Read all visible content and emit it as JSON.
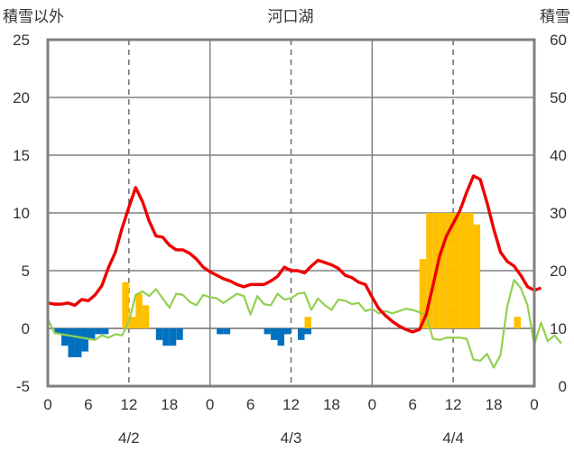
{
  "chart_data": {
    "type": "bar",
    "title": "河口湖",
    "y_left_label": "積雪以外",
    "y_right_label": "積雪",
    "y_left_range": [
      -5,
      25
    ],
    "y_left_ticks": [
      "-5",
      "0",
      "5",
      "10",
      "15",
      "20",
      "25"
    ],
    "y_right_range": [
      0,
      60
    ],
    "y_right_ticks": [
      "0",
      "10",
      "20",
      "30",
      "40",
      "50",
      "60"
    ],
    "x_range": [
      0,
      72
    ],
    "x_tick_labels": [
      "0",
      "6",
      "12",
      "18",
      "0",
      "6",
      "12",
      "18",
      "0",
      "6",
      "12",
      "18",
      "0"
    ],
    "date_labels": [
      {
        "text": "4/2",
        "x": 12
      },
      {
        "text": "4/3",
        "x": 36
      },
      {
        "text": "4/4",
        "x": 60
      }
    ],
    "day_boundaries": [
      24,
      48
    ],
    "noon_lines": [
      12,
      36,
      60
    ],
    "grid": true,
    "colors": {
      "temperature": "#ee0000",
      "precip_line": "#92d050",
      "snowfall": "#ffc000",
      "snow_change": "#0070c0",
      "snow_depth": "#7030a0"
    },
    "series": [
      {
        "values": [
          2.2,
          2.1,
          2.1,
          2.2,
          2.0,
          2.5,
          2.4,
          2.9,
          3.7,
          5.3,
          6.6,
          8.7,
          10.5,
          12.2,
          11.0,
          9.3,
          8.0,
          7.9,
          7.2,
          6.8,
          6.8,
          6.5,
          6.0,
          5.3,
          4.9,
          4.6,
          4.3,
          4.1,
          3.8,
          3.6,
          3.8,
          3.8,
          3.8,
          4.1,
          4.5,
          5.3,
          5.0,
          5.0,
          4.8,
          5.4,
          5.9,
          5.7,
          5.5,
          5.2,
          4.6,
          4.4,
          4.0,
          3.8,
          2.7,
          1.7,
          1.1,
          0.6,
          0.2,
          -0.1,
          -0.3,
          -0.1,
          1.2,
          3.7,
          6.3,
          8.0,
          9.1,
          10.2,
          11.8,
          13.2,
          12.9,
          10.9,
          8.6,
          6.6,
          5.8,
          5.4,
          4.6,
          3.6,
          3.3,
          3.5
        ]
      },
      {
        "values": [
          0.8,
          -0.4,
          -0.5,
          -0.6,
          -0.7,
          -0.8,
          -0.9,
          -1.0,
          -0.6,
          -0.8,
          -0.5,
          -0.6,
          0.6,
          2.9,
          3.2,
          2.8,
          3.4,
          2.6,
          1.8,
          3.0,
          2.9,
          2.3,
          2.0,
          2.9,
          2.7,
          2.6,
          2.2,
          2.6,
          3.0,
          2.8,
          1.2,
          2.8,
          2.1,
          2.0,
          3.0,
          2.5,
          2.6,
          3.0,
          3.1,
          1.6,
          2.6,
          2.0,
          1.6,
          2.5,
          2.4,
          2.1,
          2.2,
          1.5,
          1.7,
          1.3,
          1.5,
          1.3,
          1.5,
          1.7,
          1.6,
          1.4,
          1.1,
          -0.9,
          -1.0,
          -0.8,
          -0.8,
          -0.8,
          -0.9,
          -2.7,
          -2.8,
          -2.2,
          -3.4,
          -2.3,
          1.9,
          4.2,
          3.5,
          2.0,
          -1.4,
          0.5,
          -1.1,
          -0.6,
          -1.3
        ]
      },
      {
        "bars_pos": [
          [
            11.5,
            4.0
          ],
          [
            12.5,
            1.0
          ],
          [
            13.5,
            3.0
          ],
          [
            14.5,
            2.0
          ],
          [
            38.5,
            1.0
          ],
          [
            55.5,
            6.0
          ],
          [
            56.5,
            10.0
          ],
          [
            57.5,
            10.0
          ],
          [
            58.5,
            10.0
          ],
          [
            59.5,
            10.0
          ],
          [
            60.5,
            10.0
          ],
          [
            61.5,
            10.0
          ],
          [
            62.5,
            10.0
          ],
          [
            63.5,
            9.0
          ],
          [
            69.5,
            1.0
          ]
        ]
      },
      {
        "bars_neg": [
          [
            1.5,
            -0.5
          ],
          [
            2.5,
            -1.5
          ],
          [
            3.5,
            -2.5
          ],
          [
            4.5,
            -2.5
          ],
          [
            5.5,
            -2.0
          ],
          [
            6.5,
            -1.0
          ],
          [
            7.5,
            -0.5
          ],
          [
            8.5,
            -0.5
          ],
          [
            16.5,
            -1.0
          ],
          [
            17.5,
            -1.5
          ],
          [
            18.5,
            -1.5
          ],
          [
            19.5,
            -1.0
          ],
          [
            25.5,
            -0.5
          ],
          [
            26.5,
            -0.5
          ],
          [
            32.5,
            -0.5
          ],
          [
            33.5,
            -1.0
          ],
          [
            34.5,
            -1.5
          ],
          [
            35.5,
            -0.5
          ],
          [
            37.5,
            -1.0
          ],
          [
            38.5,
            -0.5
          ]
        ]
      },
      {
        "values_right_axis": [
          0,
          0,
          0,
          0,
          0,
          0,
          0,
          0,
          0,
          0,
          0,
          0,
          0,
          0,
          0,
          0,
          0,
          0,
          0,
          0,
          0,
          0,
          0,
          0,
          0,
          0,
          0,
          0,
          0,
          0,
          0,
          0,
          0,
          0,
          0,
          0,
          0,
          0,
          0,
          0,
          0,
          0,
          0,
          0,
          0,
          0,
          0,
          0,
          0,
          0,
          0,
          0,
          0,
          0,
          0,
          0,
          0,
          0,
          0,
          0,
          0,
          0,
          0,
          0,
          0,
          0,
          0,
          0,
          0,
          0,
          0,
          0,
          0
        ]
      }
    ]
  }
}
